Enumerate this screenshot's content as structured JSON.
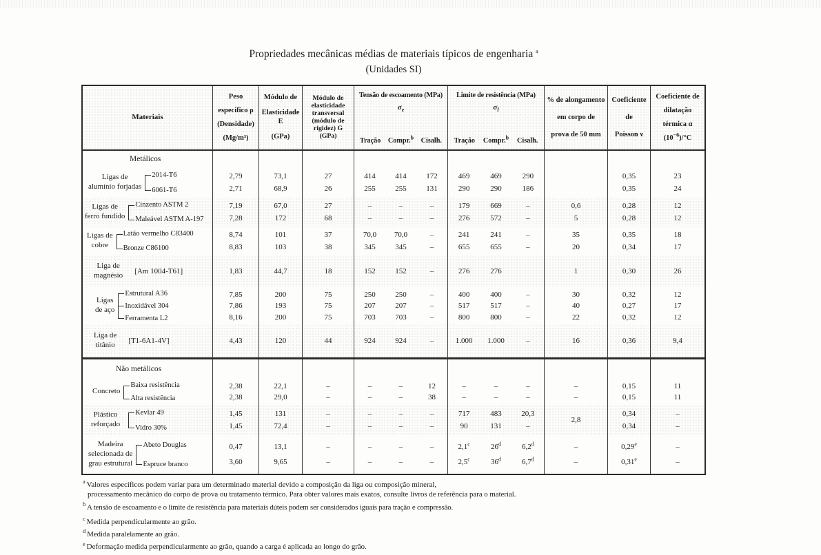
{
  "page": {
    "title": "Propriedades mecânicas médias de materiais típicos de engenharia |a",
    "subtitle": "(Unidades SI)"
  },
  "header": {
    "materials": "Materiais",
    "density": [
      "Peso",
      "específico ρ",
      "(Densidade)",
      "(Mg/m³)"
    ],
    "modulusE": [
      "Módulo de",
      "Elasticidade E",
      "(GPa)"
    ],
    "modulusG": [
      "Módulo de",
      "elasticidade",
      "transversal",
      "(módulo de",
      "rigidez) G",
      "(GPa)"
    ],
    "yield": {
      "title": "Tensão de escoamento (MPa)",
      "sigma": "σ",
      "sub": "e"
    },
    "ultimate": {
      "title": "Limite de resistência (MPa)",
      "sigma": "σ",
      "sub": "l"
    },
    "strain_cols": [
      "Tração",
      "Compr.|b",
      "Cisalh."
    ],
    "elongation": [
      "% de alongamento",
      "em corpo de",
      "prova de 50 mm"
    ],
    "poisson": [
      "Coeficiente",
      "de",
      "Poisson ν"
    ],
    "thermal": [
      "Coeficiente de",
      "dilatação",
      "térmica α"
    ],
    "thermal_tail": [
      "(10",
      "−6",
      ")/°C"
    ]
  },
  "sections": {
    "metallic": "Metálicos",
    "nonmetallic": "Não metálicos"
  },
  "groups": {
    "al": {
      "label": [
        "Ligas de",
        "alumínio forjadas"
      ],
      "items": [
        "2014-T6",
        "6061-T6"
      ],
      "rows": [
        [
          "2,79",
          "73,1",
          "27",
          "414",
          "414",
          "172",
          "469",
          "469",
          "290",
          "",
          "0,35",
          "23"
        ],
        [
          "2,71",
          "68,9",
          "26",
          "255",
          "255",
          "131",
          "290",
          "290",
          "186",
          "",
          "0,35",
          "24"
        ]
      ]
    },
    "fe": {
      "label": [
        "Ligas de",
        "ferro fundido"
      ],
      "items": [
        "Cinzento ASTM 2",
        "Maleável ASTM A-197"
      ],
      "rows": [
        [
          "7,19",
          "67,0",
          "27",
          "–",
          "–",
          "–",
          "179",
          "669",
          "–",
          "0,6",
          "0,28",
          "12"
        ],
        [
          "7,28",
          "172",
          "68",
          "–",
          "–",
          "–",
          "276",
          "572",
          "–",
          "5",
          "0,28",
          "12"
        ]
      ]
    },
    "cu": {
      "label": [
        "Ligas de",
        "cobre"
      ],
      "items": [
        "Latão vermelho C83400",
        "Bronze C86100"
      ],
      "rows": [
        [
          "8,74",
          "101",
          "37",
          "70,0",
          "70,0",
          "–",
          "241",
          "241",
          "–",
          "35",
          "0,35",
          "18"
        ],
        [
          "8,83",
          "103",
          "38",
          "345",
          "345",
          "–",
          "655",
          "655",
          "–",
          "20",
          "0,34",
          "17"
        ]
      ]
    },
    "mg": {
      "label": [
        "Liga de",
        "magnésio"
      ],
      "item": "[Am 1004-T61]",
      "rows": [
        [
          "1,83",
          "44,7",
          "18",
          "152",
          "152",
          "–",
          "276",
          "276",
          "",
          "1",
          "0,30",
          "26"
        ]
      ]
    },
    "st": {
      "label": [
        "Ligas",
        "de aço"
      ],
      "items": [
        "Estrutural A36",
        "Inoxidável 304",
        "Ferramenta L2"
      ],
      "rows": [
        [
          "7,85",
          "200",
          "75",
          "250",
          "250",
          "–",
          "400",
          "400",
          "–",
          "30",
          "0,32",
          "12"
        ],
        [
          "7,86",
          "193",
          "75",
          "207",
          "207",
          "–",
          "517",
          "517",
          "–",
          "40",
          "0,27",
          "17"
        ],
        [
          "8,16",
          "200",
          "75",
          "703",
          "703",
          "–",
          "800",
          "800",
          "–",
          "22",
          "0,32",
          "12"
        ]
      ]
    },
    "ti": {
      "label": [
        "Liga de",
        "titânio"
      ],
      "item": "[T1-6A1-4V]",
      "rows": [
        [
          "4,43",
          "120",
          "44",
          "924",
          "924",
          "–",
          "1.000",
          "1.000",
          "–",
          "16",
          "0,36",
          "9,4"
        ]
      ]
    },
    "co": {
      "label": [
        "Concreto"
      ],
      "items": [
        "Baixa resistência",
        "Alta resistência"
      ],
      "rows": [
        [
          "2,38",
          "22,1",
          "–",
          "–",
          "–",
          "12",
          "–",
          "–",
          "–",
          "–",
          "0,15",
          "11"
        ],
        [
          "2,38",
          "29,0",
          "–",
          "–",
          "–",
          "38",
          "–",
          "–",
          "–",
          "–",
          "0,15",
          "11"
        ]
      ]
    },
    "pl": {
      "label": [
        "Plástico",
        "reforçado"
      ],
      "items": [
        "Kevlar 49",
        "Vidro 30%"
      ],
      "elong": "2,8",
      "rows": [
        [
          "1,45",
          "131",
          "–",
          "–",
          "–",
          "–",
          "717",
          "483",
          "20,3",
          "",
          "0,34",
          "–"
        ],
        [
          "1,45",
          "72,4",
          "–",
          "–",
          "–",
          "–",
          "90",
          "131",
          "–",
          "",
          "0,34",
          "–"
        ]
      ]
    },
    "wd": {
      "label": [
        "Madeira",
        "selecionada de",
        "grau estrutural"
      ],
      "items": [
        "Abeto Douglas",
        "Espruce branco"
      ],
      "rows": [
        [
          "0,47",
          "13,1",
          "–",
          "–",
          "–",
          "–",
          "2,1|c",
          "26|d",
          "6,2|d",
          "–",
          "0,29|e",
          "–"
        ],
        [
          "3,60",
          "9,65",
          "–",
          "–",
          "–",
          "–",
          "2,5|c",
          "36|d",
          "6,7|d",
          "–",
          "0,31|e",
          "–"
        ]
      ]
    }
  },
  "footnotes": [
    {
      "marker": "a",
      "lines": [
        "Valores específicos podem variar para um determinado material devido a composição da liga ou composição mineral,",
        "processamento mecânico do corpo de prova ou tratamento térmico. Para obter valores mais exatos, consulte livros de referência para o material."
      ]
    },
    {
      "marker": "b",
      "lines": [
        "A tensão de escoamento e o limite de resistência para materiais dúteis podem ser considerados iguais para tração e compressão."
      ]
    },
    {
      "marker": "c",
      "lines": [
        "Medida perpendicularmente ao grão."
      ]
    },
    {
      "marker": "d",
      "lines": [
        "Medida paralelamente ao grão."
      ]
    },
    {
      "marker": "e",
      "lines": [
        "Deformação medida perpendicularmente ao grão, quando a carga é aplicada ao longo do grão."
      ]
    }
  ]
}
